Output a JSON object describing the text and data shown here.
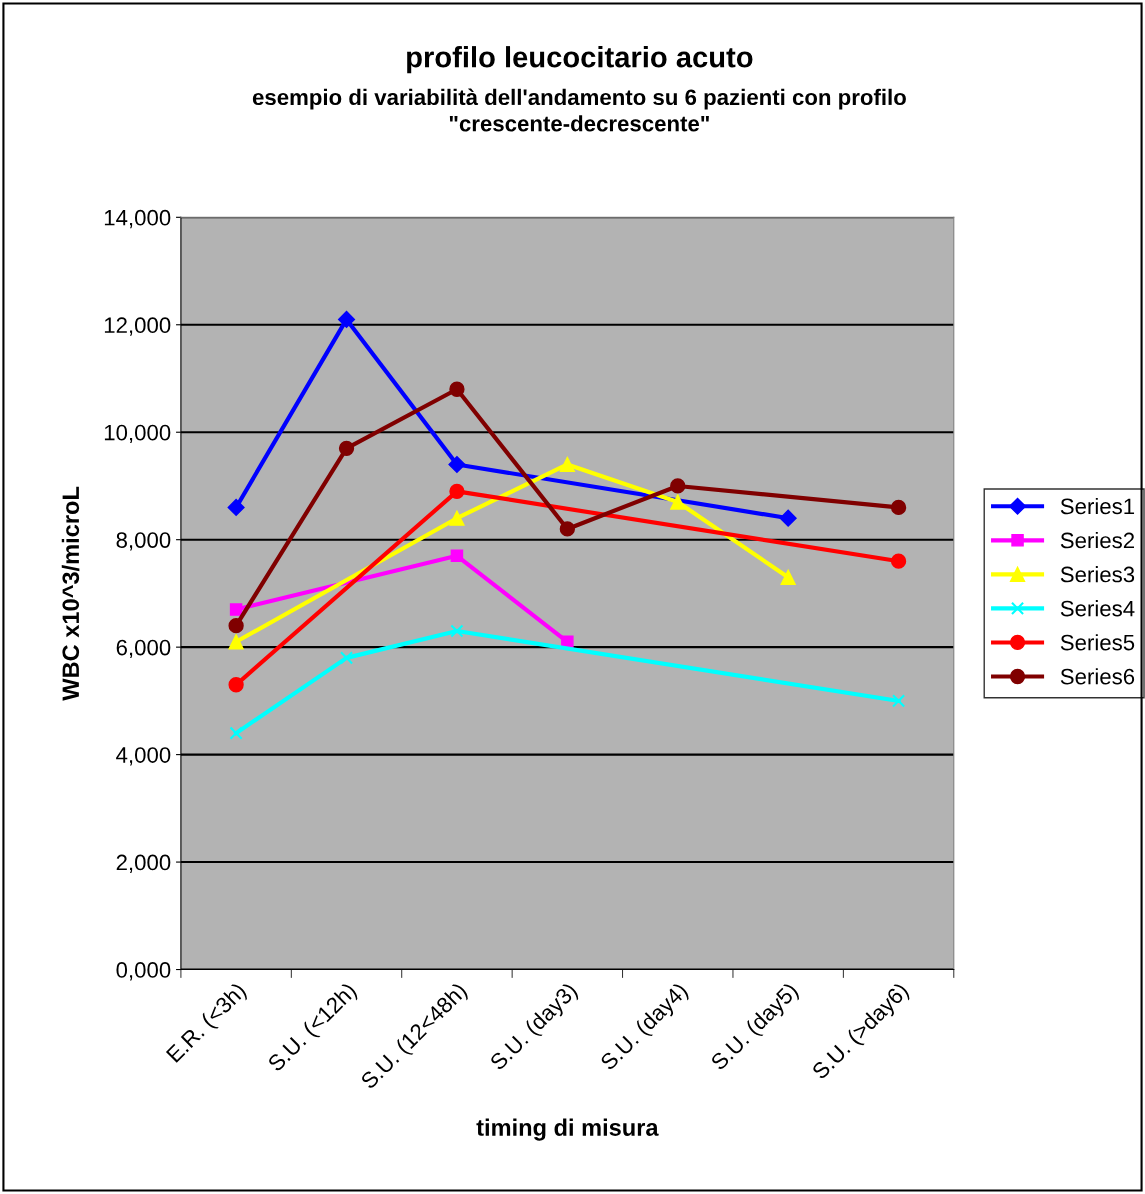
{
  "chart_data": {
    "type": "line",
    "title": "profilo leucocitario acuto",
    "subtitle": "esempio di variabilità dell'andamento su 6 pazienti con profilo\n\"crescente-decrescente\"",
    "xlabel": "timing di misura",
    "ylabel": "WBC x10^3/microL",
    "categories": [
      "E.R. (<3h)",
      "S.U. (<12h)",
      "S.U. (12<48h)",
      "S.U. (day3)",
      "S.U. (day4)",
      "S.U. (day5)",
      "S.U. (>day6)"
    ],
    "series": [
      {
        "name": "Series1",
        "color": "#0000ff",
        "marker": "diamond",
        "values": [
          8600,
          12100,
          9400,
          null,
          null,
          8400,
          null
        ]
      },
      {
        "name": "Series2",
        "color": "#ff00ff",
        "marker": "square",
        "values": [
          6700,
          null,
          7700,
          6100,
          null,
          null,
          null
        ]
      },
      {
        "name": "Series3",
        "color": "#ffff00",
        "marker": "triangle",
        "values": [
          6100,
          null,
          8400,
          9400,
          8700,
          7300,
          null
        ]
      },
      {
        "name": "Series4",
        "color": "#00ffff",
        "marker": "cross",
        "values": [
          4400,
          5800,
          6300,
          null,
          null,
          null,
          5000
        ]
      },
      {
        "name": "Series5",
        "color": "#ff0000",
        "marker": "circle",
        "values": [
          5300,
          null,
          8900,
          null,
          null,
          null,
          7600
        ]
      },
      {
        "name": "Series6",
        "color": "#800000",
        "marker": "circle",
        "values": [
          6400,
          9700,
          10800,
          8200,
          9000,
          null,
          8600
        ]
      }
    ],
    "ylim": [
      0,
      14000
    ],
    "yticks": [
      {
        "value": 0,
        "label": "0,000"
      },
      {
        "value": 2000,
        "label": "2,000"
      },
      {
        "value": 4000,
        "label": "4,000"
      },
      {
        "value": 6000,
        "label": "6,000"
      },
      {
        "value": 8000,
        "label": "8,000"
      },
      {
        "value": 10000,
        "label": "10,000"
      },
      {
        "value": 12000,
        "label": "12,000"
      },
      {
        "value": 14000,
        "label": "14,000"
      }
    ],
    "grid": "y",
    "legend": "right"
  }
}
